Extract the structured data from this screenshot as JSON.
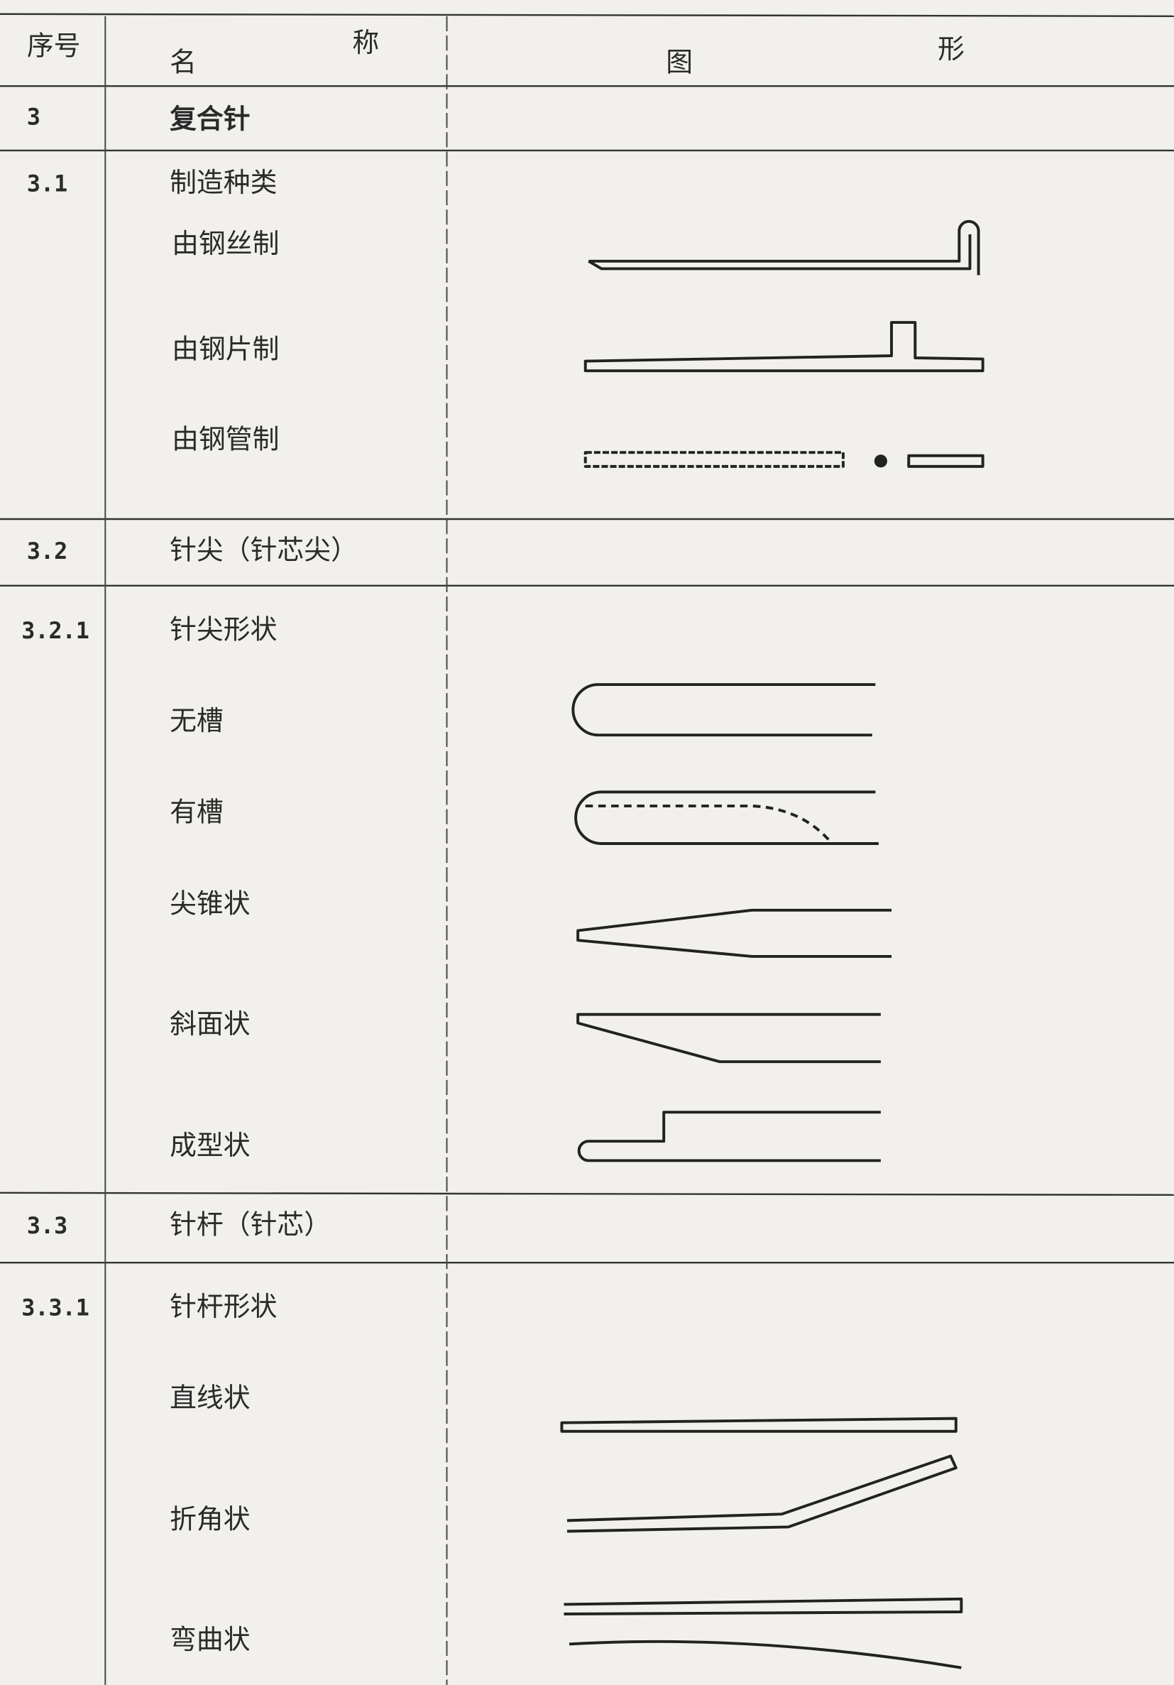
{
  "header": {
    "number": "序号",
    "name": [
      "名",
      "称"
    ],
    "figure": [
      "图",
      "形"
    ]
  },
  "rows": [
    {
      "number": "3",
      "name": "复合针"
    },
    {
      "number": "3.1",
      "name": "制造种类",
      "items": [
        "由钢丝制",
        "由钢片制",
        "由钢管制"
      ]
    },
    {
      "number": "3.2",
      "name": "针尖（针芯尖）"
    },
    {
      "number": "3.2.1",
      "name": "针尖形状",
      "items": [
        "无槽",
        "有槽",
        "尖锥状",
        "斜面状",
        "成型状"
      ]
    },
    {
      "number": "3.3",
      "name": "针杆（针芯）"
    },
    {
      "number": "3.3.1",
      "name": "针杆形状",
      "items": [
        "直线状",
        "折角状",
        "弯曲状"
      ]
    }
  ]
}
